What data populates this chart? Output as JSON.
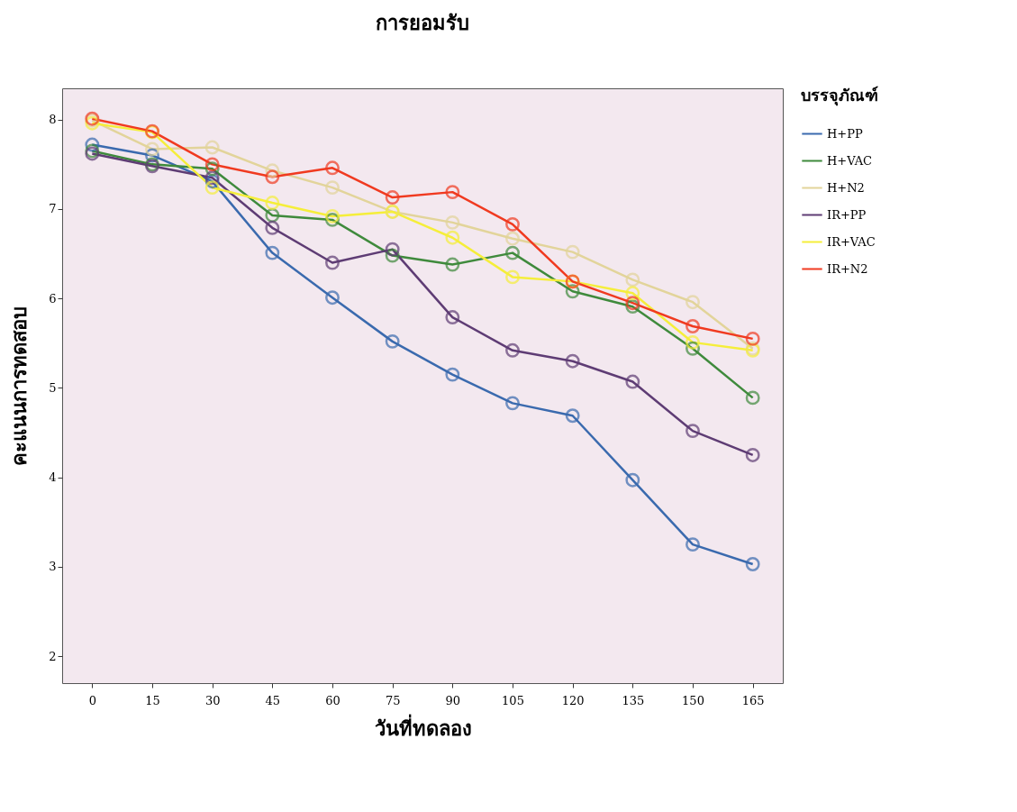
{
  "chart_data": {
    "type": "line",
    "title": "การยอมรับ",
    "xlabel": "วันที่ทดลอง",
    "ylabel": "คะแนนการทดสอบ",
    "legend_title": "บรรจุภัณฑ์",
    "legend": "right",
    "marker": "circle",
    "line_style": "solid",
    "grid": false,
    "categories": [
      "0",
      "15",
      "30",
      "45",
      "60",
      "75",
      "90",
      "105",
      "120",
      "135",
      "150",
      "165"
    ],
    "ylim": [
      1.7,
      8.35
    ],
    "yticks": [
      2,
      3,
      4,
      5,
      6,
      7,
      8
    ],
    "series": [
      {
        "name": "H+PP",
        "color": "#3a6aae",
        "values": [
          7.72,
          7.6,
          7.31,
          6.51,
          6.01,
          5.52,
          5.15,
          4.83,
          4.69,
          3.97,
          3.25,
          3.03
        ]
      },
      {
        "name": "H+VAC",
        "color": "#3f8a3c",
        "values": [
          7.65,
          7.5,
          7.45,
          6.93,
          6.88,
          6.48,
          6.38,
          6.51,
          6.08,
          5.91,
          5.44,
          4.89
        ]
      },
      {
        "name": "H+N2",
        "color": "#e2d49a",
        "values": [
          7.99,
          7.67,
          7.69,
          7.43,
          7.24,
          6.97,
          6.85,
          6.67,
          6.52,
          6.21,
          5.96,
          5.44
        ]
      },
      {
        "name": "IR+PP",
        "color": "#5e3c74",
        "values": [
          7.62,
          7.48,
          7.35,
          6.79,
          6.4,
          6.55,
          5.79,
          5.42,
          5.3,
          5.07,
          4.52,
          4.25
        ]
      },
      {
        "name": "IR+VAC",
        "color": "#f5ee3a",
        "values": [
          7.96,
          7.86,
          7.24,
          7.07,
          6.92,
          6.97,
          6.68,
          6.24,
          6.19,
          6.06,
          5.51,
          5.42
        ]
      },
      {
        "name": "IR+N2",
        "color": "#f03a20",
        "values": [
          8.01,
          7.87,
          7.5,
          7.36,
          7.46,
          7.13,
          7.19,
          6.83,
          6.19,
          5.95,
          5.69,
          5.55
        ]
      }
    ]
  }
}
